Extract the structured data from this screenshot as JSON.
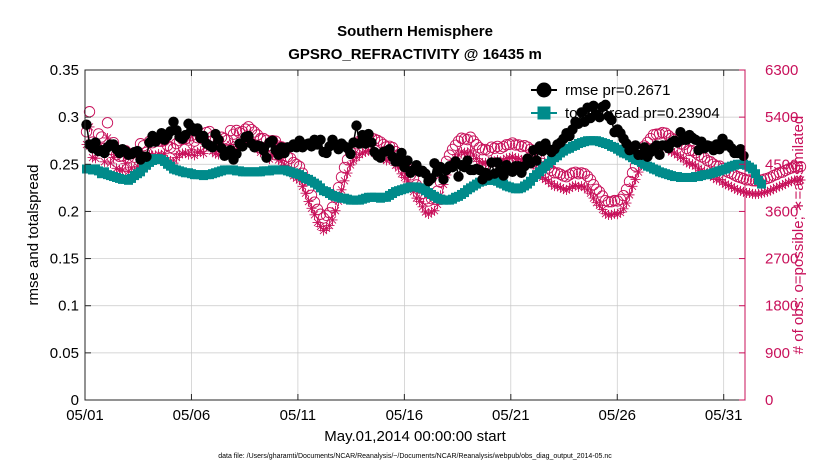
{
  "chart_data": {
    "type": "line",
    "title": "Southern Hemisphere",
    "subtitle": "GPSRO_REFRACTIVITY @ 16435 m",
    "xlabel": "May.01,2014 00:00:00 start",
    "ylabel": "rmse and totalspread",
    "y2label": "# of obs: o=possible; ∗=assimilated",
    "footnote": "data file: /Users/gharamti/Documents/NCAR/Reanalysis/~/Documents/NCAR/Reanalysis/webpub/obs_diag_output_2014-05.nc",
    "x_range": [
      1,
      32
    ],
    "ylim": [
      0,
      0.35
    ],
    "y2lim": [
      0,
      6300
    ],
    "x_tick_positions": [
      1,
      6,
      11,
      16,
      21,
      26,
      31
    ],
    "x_ticks": [
      "05/01",
      "05/06",
      "05/11",
      "05/16",
      "05/21",
      "05/26",
      "05/31"
    ],
    "y_ticks": [
      "0",
      "0.05",
      "0.1",
      "0.15",
      "0.2",
      "0.25",
      "0.3",
      "0.35"
    ],
    "y2_ticks": [
      "0",
      "900",
      "1800",
      "2700",
      "3600",
      "4500",
      "5400",
      "6300"
    ],
    "grid": true,
    "legend_position": "top-right",
    "colors": {
      "rmse": "#000000",
      "totalspread": "#008b8b",
      "obs": "#c8105a",
      "grid": "#c8c8c8"
    },
    "series": [
      {
        "name": "rmse pr=0.2671",
        "axis": "left",
        "marker": "circle",
        "values": [
          0.292,
          0.271,
          0.267,
          0.273,
          0.264,
          0.265,
          0.262,
          0.268,
          0.271,
          0.271,
          0.266,
          0.262,
          0.266,
          0.264,
          0.26,
          0.261,
          0.263,
          0.264,
          0.255,
          0.258,
          0.258,
          0.273,
          0.28,
          0.274,
          0.278,
          0.283,
          0.276,
          0.28,
          0.285,
          0.295,
          0.286,
          0.279,
          0.277,
          0.281,
          0.293,
          0.289,
          0.285,
          0.288,
          0.278,
          0.28,
          0.272,
          0.27,
          0.268,
          0.282,
          0.276,
          0.267,
          0.259,
          0.261,
          0.265,
          0.255,
          0.261,
          0.272,
          0.269,
          0.279,
          0.28,
          0.272,
          0.268,
          0.27,
          0.269,
          0.265,
          0.257,
          0.273,
          0.275,
          0.265,
          0.26,
          0.268,
          0.262,
          0.268,
          0.268,
          0.271,
          0.268,
          0.275,
          0.268,
          0.271,
          0.272,
          0.269,
          0.276,
          0.271,
          0.276,
          0.263,
          0.262,
          0.269,
          0.276,
          0.271,
          0.266,
          0.272,
          0.269,
          0.267,
          0.261,
          0.273,
          0.291,
          0.272,
          0.281,
          0.272,
          0.282,
          0.273,
          0.263,
          0.259,
          0.257,
          0.263,
          0.264,
          0.266,
          0.258,
          0.253,
          0.253,
          0.262,
          0.247,
          0.254,
          0.241,
          0.244,
          0.249,
          0.242,
          0.243,
          0.24,
          0.232,
          0.235,
          0.251,
          0.242,
          0.247,
          0.234,
          0.244,
          0.248,
          0.247,
          0.253,
          0.237,
          0.249,
          0.247,
          0.254,
          0.244,
          0.244,
          0.245,
          0.244,
          0.234,
          0.241,
          0.238,
          0.252,
          0.24,
          0.252,
          0.243,
          0.238,
          0.249,
          0.244,
          0.242,
          0.248,
          0.248,
          0.241,
          0.248,
          0.256,
          0.251,
          0.265,
          0.254,
          0.269,
          0.264,
          0.272,
          0.266,
          0.263,
          0.266,
          0.271,
          0.273,
          0.277,
          0.283,
          0.28,
          0.287,
          0.295,
          0.293,
          0.305,
          0.295,
          0.31,
          0.299,
          0.312,
          0.303,
          0.3,
          0.311,
          0.313,
          0.301,
          0.297,
          0.284,
          0.287,
          0.283,
          0.277,
          0.272,
          0.265,
          0.266,
          0.27,
          0.26,
          0.26,
          0.268,
          0.258,
          0.263,
          0.267,
          0.27,
          0.26,
          0.27,
          0.27,
          0.267,
          0.273,
          0.275,
          0.273,
          0.284,
          0.276,
          0.276,
          0.281,
          0.278,
          0.276,
          0.265,
          0.274,
          0.267,
          0.27,
          0.269,
          0.265,
          0.271,
          0.266,
          0.277,
          0.27,
          0.271,
          0.267,
          0.262,
          0.262,
          0.266,
          0.259
        ]
      },
      {
        "name": "totalspread pr=0.23904",
        "axis": "left",
        "marker": "square",
        "values": [
          0.245,
          0.245,
          0.244,
          0.245,
          0.243,
          0.24,
          0.242,
          0.239,
          0.238,
          0.237,
          0.236,
          0.235,
          0.234,
          0.234,
          0.233,
          0.235,
          0.238,
          0.24,
          0.242,
          0.246,
          0.249,
          0.252,
          0.254,
          0.256,
          0.256,
          0.255,
          0.253,
          0.25,
          0.248,
          0.245,
          0.244,
          0.243,
          0.242,
          0.241,
          0.241,
          0.24,
          0.239,
          0.239,
          0.239,
          0.238,
          0.239,
          0.239,
          0.24,
          0.241,
          0.242,
          0.243,
          0.244,
          0.244,
          0.244,
          0.244,
          0.243,
          0.243,
          0.242,
          0.242,
          0.242,
          0.242,
          0.242,
          0.242,
          0.242,
          0.243,
          0.243,
          0.243,
          0.244,
          0.244,
          0.244,
          0.244,
          0.244,
          0.243,
          0.242,
          0.241,
          0.24,
          0.239,
          0.237,
          0.235,
          0.234,
          0.232,
          0.23,
          0.228,
          0.225,
          0.222,
          0.221,
          0.219,
          0.217,
          0.216,
          0.215,
          0.214,
          0.214,
          0.213,
          0.212,
          0.212,
          0.212,
          0.212,
          0.213,
          0.214,
          0.215,
          0.215,
          0.215,
          0.215,
          0.214,
          0.215,
          0.215,
          0.217,
          0.219,
          0.221,
          0.222,
          0.223,
          0.224,
          0.225,
          0.226,
          0.226,
          0.226,
          0.225,
          0.224,
          0.222,
          0.22,
          0.218,
          0.216,
          0.214,
          0.213,
          0.212,
          0.212,
          0.212,
          0.213,
          0.215,
          0.216,
          0.218,
          0.22,
          0.223,
          0.225,
          0.227,
          0.229,
          0.231,
          0.232,
          0.233,
          0.233,
          0.233,
          0.233,
          0.232,
          0.23,
          0.229,
          0.227,
          0.226,
          0.225,
          0.224,
          0.224,
          0.225,
          0.227,
          0.229,
          0.232,
          0.236,
          0.239,
          0.242,
          0.245,
          0.248,
          0.251,
          0.254,
          0.257,
          0.259,
          0.262,
          0.264,
          0.266,
          0.267,
          0.269,
          0.27,
          0.272,
          0.273,
          0.274,
          0.275,
          0.275,
          0.275,
          0.275,
          0.274,
          0.273,
          0.272,
          0.271,
          0.269,
          0.268,
          0.266,
          0.264,
          0.262,
          0.261,
          0.259,
          0.257,
          0.255,
          0.254,
          0.252,
          0.25,
          0.248,
          0.247,
          0.245,
          0.244,
          0.242,
          0.241,
          0.24,
          0.239,
          0.238,
          0.237,
          0.237,
          0.236,
          0.236,
          0.236,
          0.236,
          0.236,
          0.237,
          0.237,
          0.238,
          0.239,
          0.239,
          0.24,
          0.241,
          0.242,
          0.243,
          0.244,
          0.245,
          0.247,
          0.248,
          0.249,
          0.25,
          0.25,
          0.25,
          0.249,
          0.247,
          0.245,
          0.24,
          0.233,
          0.229
        ]
      },
      {
        "name": "possible",
        "axis": "right",
        "marker": "open-circle",
        "values": [
          5120,
          5504,
          4924,
          4897,
          5081,
          5020,
          4807,
          5292,
          4782,
          4913,
          4684,
          4652,
          4657,
          4759,
          4629,
          4701,
          4634,
          4724,
          4893,
          4853,
          4727,
          4938,
          4911,
          4945,
          4941,
          4938,
          4958,
          4859,
          4822,
          4796,
          4895,
          4951,
          4976,
          4986,
          4961,
          5046,
          4941,
          5006,
          5020,
          4976,
          5107,
          5126,
          5027,
          4975,
          4961,
          5017,
          4990,
          4959,
          5143,
          5074,
          5146,
          5105,
          5123,
          5172,
          5216,
          5162,
          5116,
          5060,
          4991,
          4992,
          4959,
          4860,
          4951,
          4942,
          4847,
          4833,
          4746,
          4643,
          4615,
          4533,
          4495,
          4458,
          4329,
          4198,
          4039,
          3908,
          3778,
          3640,
          3547,
          3474,
          3525,
          3575,
          3680,
          3863,
          4054,
          4255,
          4438,
          4589,
          4737,
          4822,
          4892,
          4940,
          4976,
          5003,
          5021,
          5000,
          4981,
          4955,
          4926,
          4877,
          4833,
          4845,
          4821,
          4741,
          4685,
          4578,
          4498,
          4414,
          4297,
          4227,
          4107,
          4043,
          3942,
          3839,
          3800,
          3844,
          3862,
          3987,
          4159,
          4377,
          4556,
          4674,
          4784,
          4864,
          4939,
          4998,
          4983,
          4970,
          5017,
          4943,
          4874,
          4815,
          4778,
          4782,
          4756,
          4828,
          4807,
          4842,
          4803,
          4835,
          4872,
          4879,
          4907,
          4869,
          4870,
          4838,
          4856,
          4829,
          4784,
          4755,
          4679,
          4599,
          4515,
          4467,
          4430,
          4382,
          4337,
          4335,
          4309,
          4277,
          4262,
          4297,
          4332,
          4347,
          4319,
          4335,
          4320,
          4271,
          4205,
          4109,
          4024,
          3973,
          3893,
          3806,
          3784,
          3785,
          3807,
          3800,
          3830,
          3902,
          4018,
          4172,
          4337,
          4468,
          4605,
          4742,
          4848,
          4918,
          4990,
          5064,
          5076,
          5080,
          5106,
          5094,
          5047,
          4998,
          4976,
          4941,
          4890,
          4872,
          4804,
          4764,
          4758,
          4721,
          4675,
          4642,
          4620,
          4568,
          4547,
          4503,
          4466,
          4466,
          4420,
          4372,
          4345,
          4324,
          4293,
          4264,
          4245,
          4225,
          4202,
          4202,
          4185,
          4184,
          4186,
          4199,
          4216,
          4231,
          4253,
          4286,
          4304,
          4339,
          4350,
          4384,
          4409,
          4430,
          4452,
          4445,
          4456
        ]
      },
      {
        "name": "assimilated",
        "axis": "right",
        "marker": "asterisk",
        "values": [
          4876,
          5213,
          4629,
          4615,
          4802,
          4751,
          4547,
          5003,
          4524,
          4628,
          4424,
          4393,
          4391,
          4511,
          4363,
          4433,
          4366,
          4461,
          4605,
          4590,
          4462,
          4679,
          4665,
          4670,
          4693,
          4680,
          4703,
          4582,
          4566,
          4522,
          4629,
          4683,
          4708,
          4716,
          4685,
          4776,
          4669,
          4730,
          4749,
          4708,
          4840,
          4867,
          4753,
          4703,
          4686,
          4743,
          4728,
          4699,
          4876,
          4802,
          4878,
          4835,
          4857,
          4898,
          4942,
          4895,
          4844,
          4794,
          4729,
          4720,
          4693,
          4599,
          4678,
          4680,
          4584,
          4566,
          4486,
          4383,
          4349,
          4281,
          4234,
          4199,
          4079,
          3948,
          3788,
          3660,
          3535,
          3389,
          3313,
          3234,
          3278,
          3331,
          3437,
          3613,
          3795,
          4012,
          4185,
          4333,
          4488,
          4567,
          4631,
          4684,
          4717,
          4737,
          4758,
          4740,
          4720,
          4684,
          4661,
          4616,
          4572,
          4586,
          4564,
          4481,
          4431,
          4318,
          4247,
          4163,
          4047,
          3976,
          3854,
          3790,
          3689,
          3589,
          3550,
          3591,
          3614,
          3733,
          3909,
          4115,
          4297,
          4417,
          4520,
          4607,
          4680,
          4736,
          4723,
          4711,
          4755,
          4676,
          4608,
          4552,
          4520,
          4526,
          4503,
          4570,
          4547,
          4582,
          4548,
          4575,
          4613,
          4622,
          4644,
          4606,
          4612,
          4579,
          4591,
          4566,
          4528,
          4495,
          4414,
          4342,
          4254,
          4212,
          4177,
          4129,
          4082,
          4080,
          4054,
          4025,
          4008,
          4040,
          4080,
          4095,
          4066,
          4083,
          4065,
          4013,
          3949,
          3856,
          3767,
          3717,
          3636,
          3556,
          3531,
          3535,
          3555,
          3547,
          3579,
          3650,
          3759,
          3916,
          4080,
          4211,
          4352,
          4485,
          4590,
          4656,
          4731,
          4803,
          4821,
          4821,
          4847,
          4838,
          4786,
          4736,
          4716,
          4681,
          4633,
          4610,
          4545,
          4508,
          4503,
          4466,
          4414,
          4383,
          4366,
          4313,
          4290,
          4252,
          4208,
          4208,
          4161,
          4119,
          4096,
          4069,
          4036,
          4007,
          3992,
          3974,
          3952,
          3951,
          3934,
          3931,
          3933,
          3948,
          3963,
          3976,
          3997,
          4032,
          4050,
          4080,
          4097,
          4131,
          4154,
          4175,
          4193,
          4187,
          4200
        ]
      }
    ]
  }
}
